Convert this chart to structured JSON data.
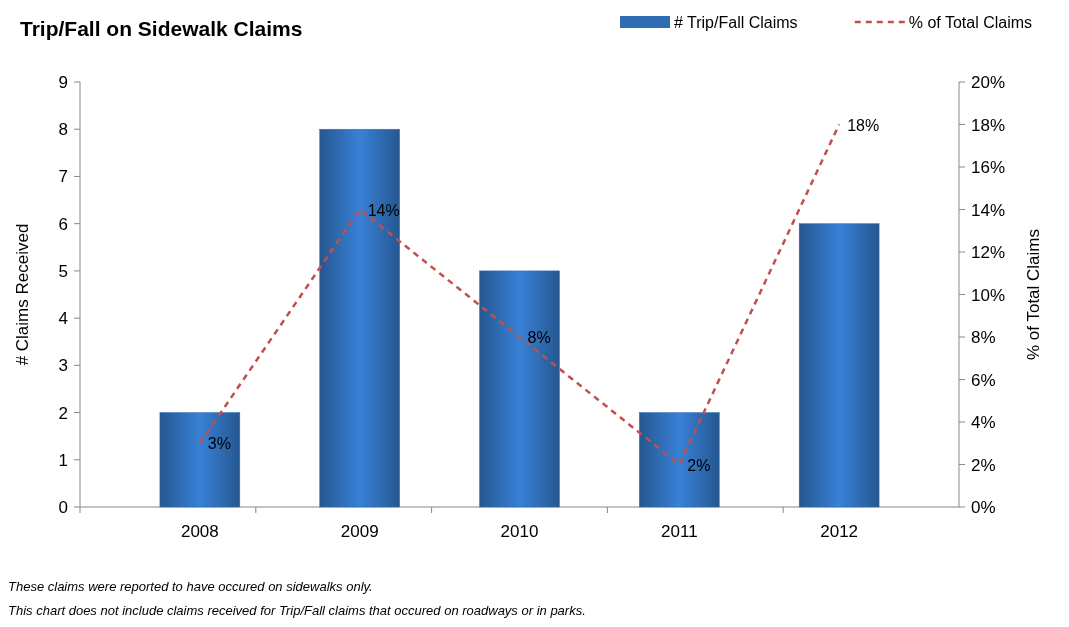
{
  "chart_data": {
    "type": "bar",
    "title": "Trip/Fall on Sidewalk Claims",
    "ylabel": "# Claims Received",
    "y2label": "% of Total Claims",
    "categories": [
      "2008",
      "2009",
      "2010",
      "2011",
      "2012"
    ],
    "series": [
      {
        "name": "# Trip/Fall Claims",
        "color": "#2f6cb3",
        "values": [
          2,
          8,
          5,
          2,
          6
        ]
      },
      {
        "name": "% of Total Claims",
        "type": "line",
        "axis": "y2",
        "color": "#c0504d",
        "line_style": "dashed",
        "marker": "none",
        "values": [
          3,
          14,
          8,
          2,
          18
        ],
        "value_labels": [
          "3%",
          "14%",
          "8%",
          "2%",
          "18%"
        ]
      }
    ],
    "ylim": [
      0,
      9
    ],
    "yticks": [
      0,
      1,
      2,
      3,
      4,
      5,
      6,
      7,
      8,
      9
    ],
    "y2lim": [
      0,
      20
    ],
    "y2ticks": [
      {
        "value": 0,
        "label": "0%"
      },
      {
        "value": 2,
        "label": "2%"
      },
      {
        "value": 4,
        "label": "4%"
      },
      {
        "value": 6,
        "label": "6%"
      },
      {
        "value": 8,
        "label": "8%"
      },
      {
        "value": 10,
        "label": "10%"
      },
      {
        "value": 12,
        "label": "12%"
      },
      {
        "value": 14,
        "label": "14%"
      },
      {
        "value": 16,
        "label": "16%"
      },
      {
        "value": 18,
        "label": "18%"
      },
      {
        "value": 20,
        "label": "20%"
      }
    ],
    "grid": false,
    "legend": "top right",
    "annotations": [
      "These claims were reported to have occured on sidewalks only.",
      "This chart does not include claims received for Trip/Fall claims that occured on roadways or in parks."
    ]
  }
}
